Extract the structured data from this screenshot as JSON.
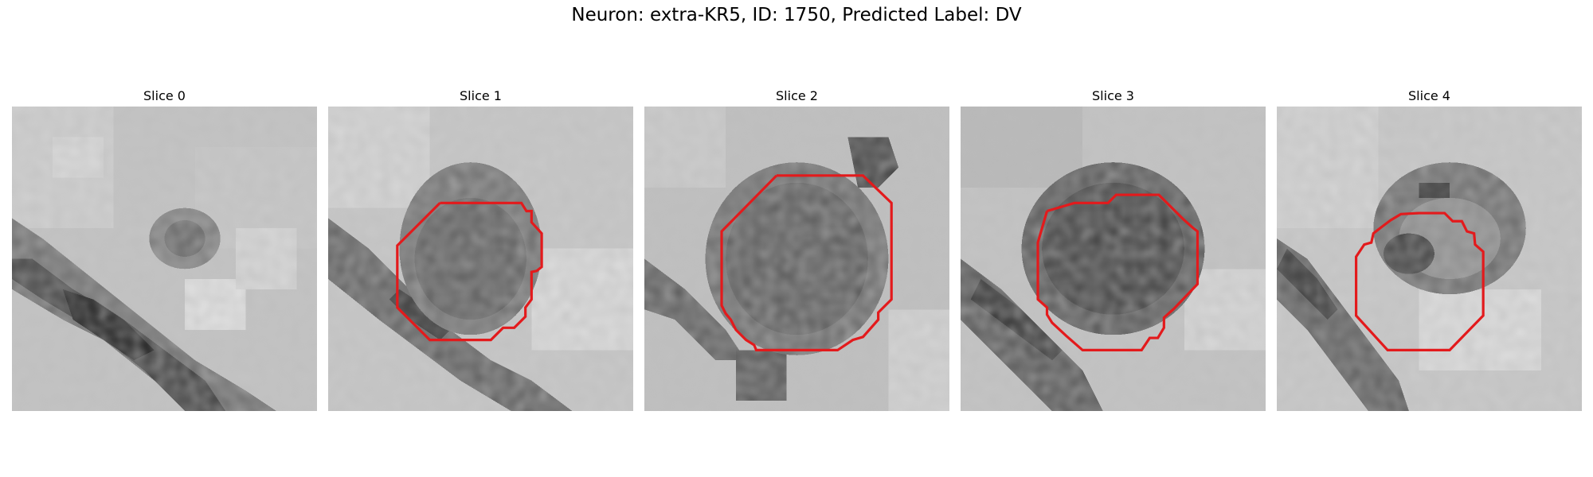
{
  "figure": {
    "title": "Neuron: extra-KR5, ID: 1750, Predicted Label: DV"
  },
  "panels": [
    {
      "title": "Slice 0",
      "contour_color": "#e31a1c"
    },
    {
      "title": "Slice 1",
      "contour_color": "#e31a1c"
    },
    {
      "title": "Slice 2",
      "contour_color": "#e31a1c"
    },
    {
      "title": "Slice 3",
      "contour_color": "#e31a1c"
    },
    {
      "title": "Slice 4",
      "contour_color": "#e31a1c"
    }
  ],
  "colors": {
    "contour": "#e31a1c",
    "colormap": "grayscale"
  }
}
